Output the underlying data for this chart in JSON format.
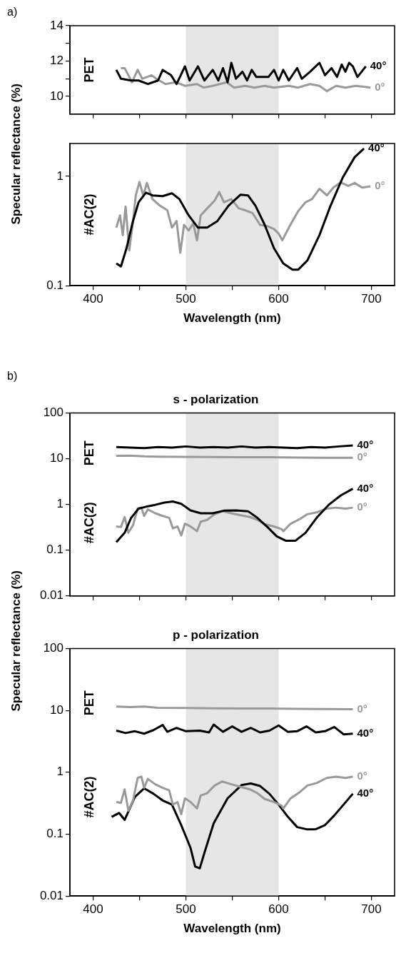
{
  "chart_data": [
    {
      "type": "line",
      "ylabel": "Specular reflectance (%)",
      "annotations": [
        "a)",
        "PET"
      ],
      "xlim": [
        375,
        725
      ],
      "xticks": [
        400,
        {
          "value": 450,
          "label": null
        },
        500,
        {
          "value": 550,
          "label": null
        },
        600,
        {
          "value": 650,
          "label": null
        },
        700
      ],
      "ylim": [
        9,
        14
      ],
      "yticks": [
        10,
        {
          "value": 11,
          "label": null
        },
        12,
        {
          "value": 13,
          "label": null
        },
        14
      ],
      "tick_labels": "y",
      "bands": [
        {
          "axis": "x",
          "from": 500,
          "to": 600,
          "color": "#e6e6e6"
        }
      ],
      "series": [
        {
          "name": "40°",
          "color": "#000000",
          "x": [
            425,
            430,
            441,
            449,
            459,
            470,
            475,
            484,
            490,
            499,
            504,
            513,
            520,
            529,
            535,
            540,
            545,
            549,
            554,
            561,
            566,
            571,
            576,
            584,
            589,
            595,
            600,
            605,
            611,
            620,
            625,
            634,
            644,
            650,
            657,
            663,
            668,
            672,
            676,
            680,
            685,
            694
          ],
          "values": [
            11.5,
            11.0,
            10.9,
            10.9,
            10.7,
            10.9,
            11.5,
            11.2,
            10.7,
            11.7,
            10.9,
            11.7,
            10.9,
            11.5,
            10.9,
            11.6,
            10.8,
            11.9,
            11.0,
            11.4,
            10.9,
            11.5,
            11.1,
            11.1,
            11.1,
            11.5,
            10.9,
            11.5,
            10.9,
            11.6,
            11.0,
            11.4,
            11.9,
            11.2,
            11.6,
            11.1,
            11.8,
            11.4,
            11.9,
            11.7,
            11.1,
            11.7
          ]
        },
        {
          "name": "0°",
          "color": "#999999",
          "x": [
            430,
            434,
            442,
            448,
            453,
            463,
            468,
            478,
            489,
            499,
            512,
            519,
            529,
            544,
            552,
            564,
            574,
            585,
            595,
            611,
            621,
            634,
            644,
            652,
            662,
            672,
            683,
            699
          ],
          "values": [
            11.6,
            11.6,
            10.8,
            11.5,
            11.0,
            11.2,
            11.0,
            10.7,
            10.8,
            10.6,
            10.7,
            10.5,
            10.6,
            10.8,
            10.5,
            10.6,
            10.5,
            10.6,
            10.5,
            10.6,
            10.5,
            10.7,
            10.6,
            10.3,
            10.6,
            10.5,
            10.6,
            10.5
          ]
        }
      ]
    },
    {
      "type": "line",
      "xlabel": "Wavelength (nm)",
      "annotations": [
        "#AC(2)"
      ],
      "log": "y",
      "xlim": [
        375,
        725
      ],
      "xticks": [
        400,
        {
          "value": 450,
          "label": null
        },
        500,
        {
          "value": 550,
          "label": null
        },
        600,
        {
          "value": 650,
          "label": null
        },
        700
      ],
      "ylim": [
        0.1,
        2
      ],
      "yticks": [
        0.1,
        1
      ],
      "bands": [
        {
          "axis": "x",
          "from": 500,
          "to": 600,
          "color": "#e6e6e6"
        }
      ],
      "series": [
        {
          "name": "40°",
          "color": "#000000",
          "x": [
            425,
            430,
            436,
            443,
            449,
            457,
            464,
            475,
            485,
            493,
            503,
            513,
            523,
            534,
            546,
            559,
            567,
            575,
            585,
            595,
            605,
            615,
            621,
            631,
            644,
            656,
            669,
            682,
            692
          ],
          "values": [
            0.16,
            0.15,
            0.22,
            0.39,
            0.58,
            0.71,
            0.67,
            0.66,
            0.7,
            0.62,
            0.44,
            0.34,
            0.34,
            0.39,
            0.54,
            0.68,
            0.67,
            0.54,
            0.36,
            0.22,
            0.16,
            0.14,
            0.14,
            0.17,
            0.29,
            0.54,
            0.97,
            1.5,
            1.8
          ]
        },
        {
          "name": "0°",
          "color": "#999999",
          "x": [
            425,
            429,
            432,
            435,
            439,
            443,
            446,
            450,
            454,
            458,
            464,
            472,
            480,
            485,
            490,
            494,
            498,
            503,
            508,
            512,
            516,
            523,
            531,
            536,
            541,
            549,
            557,
            564,
            572,
            580,
            588,
            595,
            600,
            604,
            611,
            621,
            629,
            636,
            644,
            652,
            659,
            667,
            675,
            682,
            690,
            699
          ],
          "values": [
            0.34,
            0.44,
            0.29,
            0.53,
            0.21,
            0.39,
            0.67,
            0.89,
            0.67,
            0.87,
            0.62,
            0.54,
            0.49,
            0.34,
            0.39,
            0.2,
            0.36,
            0.32,
            0.37,
            0.26,
            0.44,
            0.51,
            0.6,
            0.72,
            0.58,
            0.62,
            0.51,
            0.49,
            0.46,
            0.36,
            0.35,
            0.33,
            0.3,
            0.26,
            0.34,
            0.48,
            0.58,
            0.62,
            0.77,
            0.67,
            0.79,
            0.88,
            0.82,
            0.87,
            0.79,
            0.81
          ]
        }
      ]
    },
    {
      "type": "line",
      "title": "s - polarization",
      "ylabel": "Specular reflectance (%)",
      "annotations": [
        "b)",
        "PET",
        "#AC(2)"
      ],
      "log": "y",
      "xlim": [
        375,
        725
      ],
      "xticks": [
        400,
        {
          "value": 450,
          "label": null
        },
        500,
        {
          "value": 550,
          "label": null
        },
        600,
        {
          "value": 650,
          "label": null
        },
        700
      ],
      "ylim": [
        0.01,
        100
      ],
      "yticks": [
        0.01,
        0.1,
        1,
        10,
        100
      ],
      "tick_labels": "y",
      "bands": [
        {
          "axis": "x",
          "from": 500,
          "to": 600,
          "color": "#e6e6e6"
        }
      ],
      "series": [
        {
          "name": "40°",
          "color": "#000000",
          "x": [
            425,
            440,
            455,
            470,
            485,
            500,
            515,
            530,
            545,
            560,
            575,
            590,
            605,
            620,
            635,
            650,
            665,
            680
          ],
          "values": [
            18,
            17.5,
            17,
            18,
            17.5,
            18.5,
            17.5,
            18,
            17.5,
            18.5,
            17.5,
            18,
            17.5,
            17,
            18,
            17.5,
            18.5,
            19.5
          ]
        },
        {
          "name": "0°",
          "color": "#999999",
          "x": [
            425,
            440,
            455,
            470,
            500,
            530,
            560,
            590,
            620,
            650,
            680
          ],
          "values": [
            11.5,
            11.6,
            11.2,
            11,
            10.9,
            10.8,
            10.7,
            10.7,
            10.6,
            10.5,
            10.5
          ]
        },
        {
          "name": "40°",
          "color": "#000000",
          "x": [
            425,
            434,
            441,
            449,
            457,
            467,
            477,
            486,
            495,
            505,
            516,
            529,
            541,
            554,
            567,
            577,
            588,
            598,
            608,
            618,
            629,
            641,
            654,
            667,
            680
          ],
          "values": [
            0.15,
            0.24,
            0.51,
            0.81,
            0.89,
            0.98,
            1.1,
            1.16,
            1.03,
            0.74,
            0.64,
            0.64,
            0.73,
            0.74,
            0.71,
            0.51,
            0.32,
            0.2,
            0.16,
            0.16,
            0.24,
            0.51,
            0.98,
            1.57,
            2.2
          ]
        },
        {
          "name": "0°",
          "color": "#999999",
          "x": [
            425,
            430,
            434,
            438,
            443,
            448,
            452,
            455,
            459,
            467,
            475,
            482,
            486,
            491,
            495,
            499,
            505,
            512,
            516,
            523,
            531,
            539,
            549,
            559,
            569,
            577,
            585,
            595,
            603,
            605,
            613,
            623,
            631,
            641,
            652,
            662,
            672,
            680
          ],
          "values": [
            0.33,
            0.32,
            0.53,
            0.24,
            0.35,
            0.81,
            0.85,
            0.56,
            0.78,
            0.64,
            0.56,
            0.51,
            0.3,
            0.33,
            0.21,
            0.38,
            0.33,
            0.26,
            0.42,
            0.46,
            0.61,
            0.71,
            0.64,
            0.58,
            0.53,
            0.46,
            0.37,
            0.33,
            0.29,
            0.26,
            0.38,
            0.48,
            0.61,
            0.67,
            0.81,
            0.85,
            0.81,
            0.85
          ]
        }
      ]
    },
    {
      "type": "line",
      "title": "p - polarization",
      "xlabel": "Wavelength (nm)",
      "annotations": [
        "PET",
        "#AC(2)"
      ],
      "log": "y",
      "xlim": [
        375,
        725
      ],
      "xticks": [
        400,
        {
          "value": 450,
          "label": null
        },
        500,
        {
          "value": 550,
          "label": null
        },
        600,
        {
          "value": 650,
          "label": null
        },
        700
      ],
      "ylim": [
        0.01,
        100
      ],
      "yticks": [
        0.01,
        0.1,
        1,
        10,
        100
      ],
      "bands": [
        {
          "axis": "x",
          "from": 500,
          "to": 600,
          "color": "#e6e6e6"
        }
      ],
      "series": [
        {
          "name": "0°",
          "color": "#999999",
          "x": [
            425,
            440,
            455,
            470,
            500,
            530,
            560,
            590,
            620,
            650,
            680
          ],
          "values": [
            11.5,
            11.3,
            11.5,
            11,
            10.9,
            10.8,
            10.7,
            10.7,
            10.6,
            10.5,
            10.4
          ]
        },
        {
          "name": "40°",
          "color": "#000000",
          "x": [
            425,
            435,
            445,
            455,
            465,
            475,
            480,
            490,
            500,
            515,
            525,
            530,
            540,
            550,
            560,
            570,
            580,
            590,
            600,
            610,
            620,
            630,
            640,
            650,
            660,
            670,
            680
          ],
          "values": [
            4.7,
            4.3,
            4.6,
            4.2,
            4.8,
            5.8,
            4.5,
            5.2,
            4.6,
            4.7,
            4.4,
            5.9,
            4.5,
            5.5,
            4.5,
            5.2,
            4.4,
            4.7,
            5.7,
            4.5,
            4.6,
            5.5,
            4.4,
            4.6,
            5.4,
            4.1,
            4.2
          ]
        },
        {
          "name": "0°",
          "color": "#999999",
          "x": [
            425,
            430,
            434,
            438,
            443,
            448,
            452,
            455,
            459,
            467,
            475,
            482,
            486,
            491,
            495,
            499,
            505,
            512,
            516,
            523,
            531,
            539,
            549,
            559,
            569,
            577,
            585,
            595,
            603,
            605,
            613,
            623,
            631,
            641,
            652,
            662,
            672,
            680
          ],
          "values": [
            0.33,
            0.32,
            0.53,
            0.24,
            0.35,
            0.81,
            0.85,
            0.56,
            0.78,
            0.64,
            0.56,
            0.51,
            0.3,
            0.33,
            0.21,
            0.38,
            0.33,
            0.26,
            0.42,
            0.46,
            0.61,
            0.71,
            0.64,
            0.58,
            0.53,
            0.46,
            0.37,
            0.33,
            0.29,
            0.26,
            0.38,
            0.48,
            0.61,
            0.67,
            0.81,
            0.85,
            0.81,
            0.85
          ]
        },
        {
          "name": "40°",
          "color": "#000000",
          "x": [
            420,
            428,
            434,
            445,
            455,
            465,
            475,
            485,
            495,
            505,
            510,
            515,
            520,
            530,
            545,
            560,
            570,
            580,
            590,
            600,
            610,
            620,
            630,
            640,
            650,
            660,
            670,
            680
          ],
          "values": [
            0.19,
            0.22,
            0.17,
            0.4,
            0.55,
            0.45,
            0.35,
            0.3,
            0.14,
            0.06,
            0.03,
            0.028,
            0.05,
            0.15,
            0.38,
            0.62,
            0.66,
            0.6,
            0.45,
            0.3,
            0.19,
            0.13,
            0.12,
            0.12,
            0.14,
            0.2,
            0.3,
            0.45
          ]
        }
      ]
    }
  ]
}
